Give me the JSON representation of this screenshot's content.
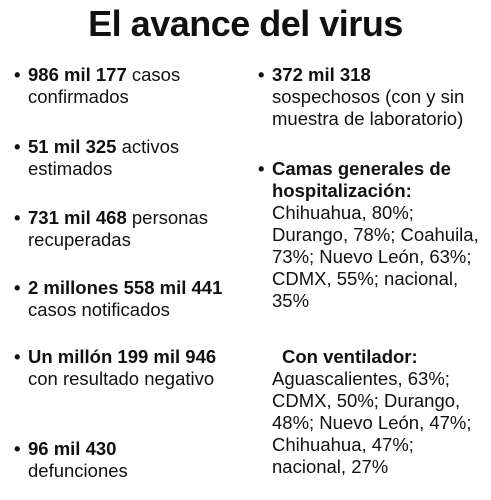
{
  "title": "El avance del virus",
  "left_items": [
    {
      "bold": "986 mil 177",
      "rest": " casos confirmados"
    },
    {
      "bold": "51 mil 325",
      "rest": " activos estimados"
    },
    {
      "bold": "731 mil 468",
      "rest": " personas recuperadas"
    },
    {
      "bold": "2 millones 558 mil 441",
      "rest": " casos notificados"
    },
    {
      "bold": "Un millón 199 mil 946",
      "rest": " con resultado negativo"
    },
    {
      "bold": "96 mil 430",
      "rest": " defunciones"
    }
  ],
  "right_item_1": {
    "bold": "372 mil 318",
    "rest": "sospechosos (con y sin muestra de laboratorio)"
  },
  "right_item_2": {
    "heading": "Camas generales de hospitalización:",
    "body": "Chihuahua, 80%; Durango, 78%; Coahuila, 73%; Nuevo León, 63%; CDMX, 55%; nacional, 35%"
  },
  "ventilator": {
    "heading": "Con ventilador:",
    "body": "Aguascalientes, 63%; CDMX, 50%; Durango, 48%; Nuevo León, 47%; Chihuahua, 47%; nacional, 27%"
  },
  "bullet": "•"
}
